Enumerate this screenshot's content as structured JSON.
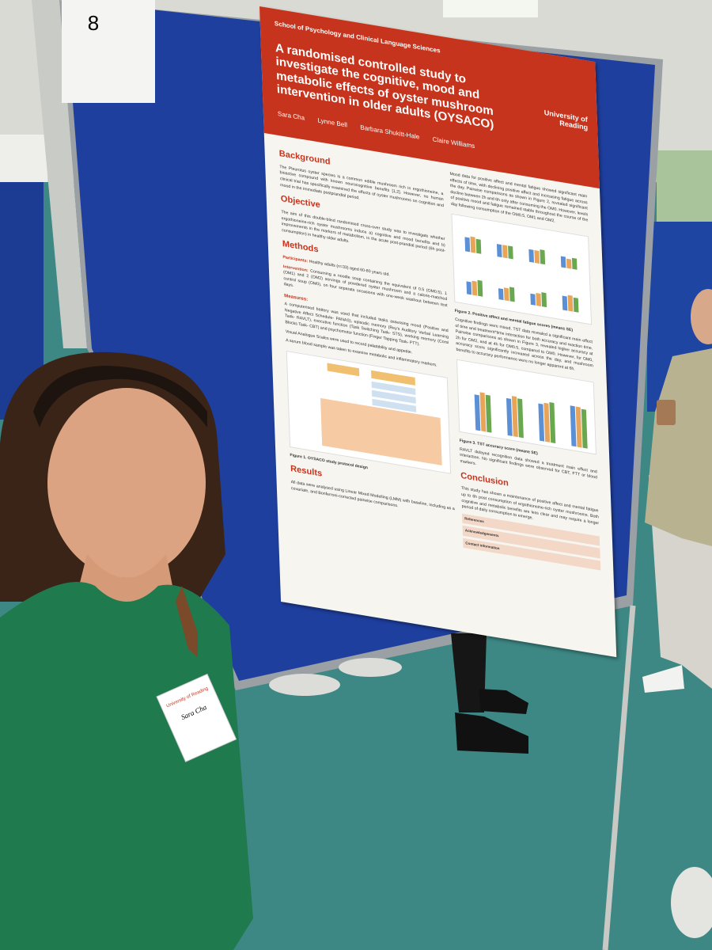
{
  "sign": {
    "number": "8"
  },
  "poster": {
    "school": "School of Psychology and Clinical Language Sciences",
    "university": "University of Reading",
    "title": "A randomised controlled study to investigate the cognitive, mood and metabolic effects of oyster mushroom intervention in older adults (OYSACO)",
    "authors": [
      "Sara Cha",
      "Lynne Bell",
      "Barbara Shukitt-Hale",
      "Claire Williams"
    ],
    "background": {
      "heading": "Background",
      "text": "The Pleurotus oyster species is a common edible mushroom rich in ergothioneine, a bioactive compound with known neurocognitive benefits [1,2]. However, no human clinical trial has specifically examined the effects of oyster mushrooms on cognition and mood in the immediate postprandial period."
    },
    "objective": {
      "heading": "Objective",
      "text": "The aim of this double-blind randomised cross-over study was to investigate whether ergothioneine-rich oyster mushrooms induce a) cognitive and mood benefits and b) improvements in the markers of metabolism, in the acute post-prandial period (6h post-consumption) in healthy older adults."
    },
    "methods": {
      "heading": "Methods",
      "participants_label": "Participants:",
      "participants": "Healthy adults (n=33) aged 60-80 years old.",
      "intervention_label": "Intervention:",
      "intervention": "Consuming a noodle soup containing the equivalent of 0.5 (OM0.5), 1 (OM1) and 2 (OM2) servings of powdered oyster mushroom and a calorie-matched control soup (OM0), on four separate occasions with one-week washout between test days.",
      "measures_label": "Measures:",
      "measures": [
        "A computerised battery was used that included tasks assessing mood (Positive and Negative Affect Schedule- PANAS), episodic memory (Rey's Auditory Verbal Learning Task- RAVLT), executive function (Task Switching Task- STS), working memory (Corsi Blocks Task- CBT) and psychomotor function (Finger Tapping Task- FTT).",
        "Visual Analogue Scales were used to record palatability and appetite.",
        "A serum blood sample was taken to examine metabolic and inflammatory markers."
      ],
      "figure_caption": "Figure 1. OYSACO study protocol design"
    },
    "results": {
      "heading": "Results",
      "text": "All data were analysed using Linear Mixed Modelling (LMM) with baseline, including as a covariate, and Bonferroni-corrected pairwise comparisons."
    },
    "right": {
      "mood_text": "Mood data for positive affect and mental fatigue showed significant main effects of time, with declining positive affect and increasing fatigue across the day. Pairwise comparisons as shown in Figure 2, revealed significant decline between 2h and 6h only after consuming the OM0. However, levels of positive mood and fatigue remained stable throughout the course of the day following consumption of the OM0.5, OM1 and OM2.",
      "figure2_caption": "Figure 2. Positive affect and mental fatigue scores (mean± SE)",
      "cognition_text": "Cognitive findings were mixed. TST data revealed a significant main effect of time and treatment*time interaction for both accuracy and reaction time. Pairwise comparisons as shown in Figure 3, revealed higher accuracy at 2h for OM2, and at 4h for OM0.5, compared to OM0. However, for OM0, accuracy score significantly increased across the day, and mushroom benefits to accuracy performance were no longer apparent at 6h.",
      "figure3_caption": "Figure 3. TST accuracy score (mean± SE)",
      "ravlt_text": "RAVLT delayed recognition data showed a treatment main effect and interaction. No significant findings were observed for CBT, FTT or blood markers.",
      "conclusion_heading": "Conclusion",
      "conclusion_text": "This study has shown a maintenance of positive affect and mental fatigue up to 6h post consumption of ergothioneine-rich oyster mushrooms. Both cognitive and metabolic benefits are less clear and may require a longer period of daily consumption to emerge.",
      "references_heading": "References",
      "acknowledgements_heading": "Acknowledgements",
      "contact_heading": "Contact information"
    }
  },
  "badge": {
    "university": "University of Reading",
    "name": "Sara Cha"
  }
}
